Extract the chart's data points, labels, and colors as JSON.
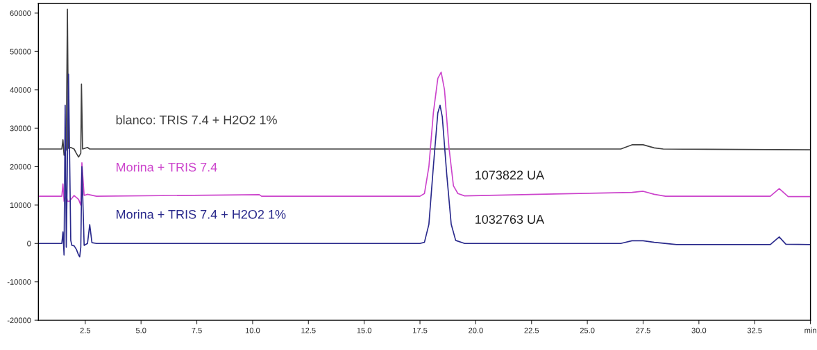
{
  "chart_data": {
    "type": "line",
    "xlim": [
      0.4,
      35
    ],
    "ylim": [
      -20000,
      62500
    ],
    "xticks": [
      2.5,
      {
        "value": 5,
        "label": "5.0"
      },
      7.5,
      {
        "value": 10,
        "label": "10.0"
      },
      12.5,
      {
        "value": 15,
        "label": "15.0"
      },
      17.5,
      {
        "value": 20,
        "label": "20.0"
      },
      22.5,
      {
        "value": 25,
        "label": "25.0"
      },
      27.5,
      {
        "value": 30,
        "label": "30.0"
      },
      32.5,
      {
        "value": 35,
        "label": "min"
      }
    ],
    "yticks": [
      -20000,
      -10000,
      0,
      10000,
      20000,
      30000,
      40000,
      50000,
      60000
    ],
    "grid": false,
    "legend": false,
    "marker": "none",
    "line_style": "solid",
    "series": [
      {
        "name": "blanco: TRIS 7.4 + H2O2 1%",
        "color": "#404040",
        "x": [
          0.4,
          1.45,
          1.5,
          1.55,
          1.65,
          1.7,
          1.75,
          1.85,
          2.0,
          2.1,
          2.2,
          2.3,
          2.33,
          2.38,
          2.6,
          2.7,
          26.5,
          27.0,
          27.5,
          28.0,
          28.4,
          35
        ],
        "values": [
          24600,
          24600,
          27000,
          23000,
          24600,
          61000,
          24800,
          25000,
          24600,
          23500,
          22500,
          23500,
          41500,
          24600,
          25000,
          24600,
          24600,
          25700,
          25700,
          24900,
          24600,
          24400
        ]
      },
      {
        "name": "Morina + TRIS 7.4",
        "color": "#cc44cc",
        "x": [
          0.4,
          1.45,
          1.5,
          1.55,
          1.65,
          1.7,
          1.8,
          2.0,
          2.2,
          2.3,
          2.35,
          2.45,
          2.6,
          3.0,
          10.3,
          10.4,
          17.5,
          17.7,
          17.9,
          18.1,
          18.3,
          18.45,
          18.6,
          18.8,
          19.0,
          19.2,
          19.5,
          27.0,
          27.5,
          28.0,
          28.5,
          33.2,
          33.6,
          34.0,
          35
        ],
        "values": [
          12300,
          12300,
          15500,
          11000,
          12500,
          11000,
          11000,
          12500,
          11500,
          10000,
          21000,
          12500,
          12800,
          12300,
          12700,
          12300,
          12300,
          13000,
          20000,
          34000,
          43000,
          44600,
          40000,
          25000,
          15000,
          13000,
          12400,
          13300,
          13600,
          12800,
          12300,
          12300,
          14300,
          12200,
          12200
        ]
      },
      {
        "name": "Morina + TRIS 7.4 + H2O2 1%",
        "color": "#2a2a8c",
        "x": [
          0.4,
          1.45,
          1.5,
          1.55,
          1.6,
          1.65,
          1.75,
          1.85,
          1.9,
          2.0,
          2.1,
          2.2,
          2.25,
          2.3,
          2.35,
          2.45,
          2.6,
          2.7,
          2.8,
          3.0,
          17.5,
          17.7,
          17.9,
          18.1,
          18.3,
          18.4,
          18.5,
          18.7,
          18.9,
          19.1,
          19.5,
          26.5,
          27.0,
          27.5,
          28.0,
          29.0,
          33.2,
          33.6,
          33.9,
          35
        ],
        "values": [
          0,
          0,
          3000,
          -3000,
          36000,
          -1000,
          44100,
          800,
          -500,
          -600,
          -1500,
          -3000,
          -3500,
          -1000,
          20000,
          -500,
          0,
          4900,
          200,
          0,
          0,
          300,
          5000,
          20000,
          34000,
          36000,
          33000,
          18000,
          5000,
          800,
          0,
          0,
          700,
          700,
          300,
          -300,
          -300,
          1700,
          -200,
          -300
        ]
      }
    ],
    "annotations": [
      "1073822 UA",
      "1032763 UA"
    ]
  }
}
